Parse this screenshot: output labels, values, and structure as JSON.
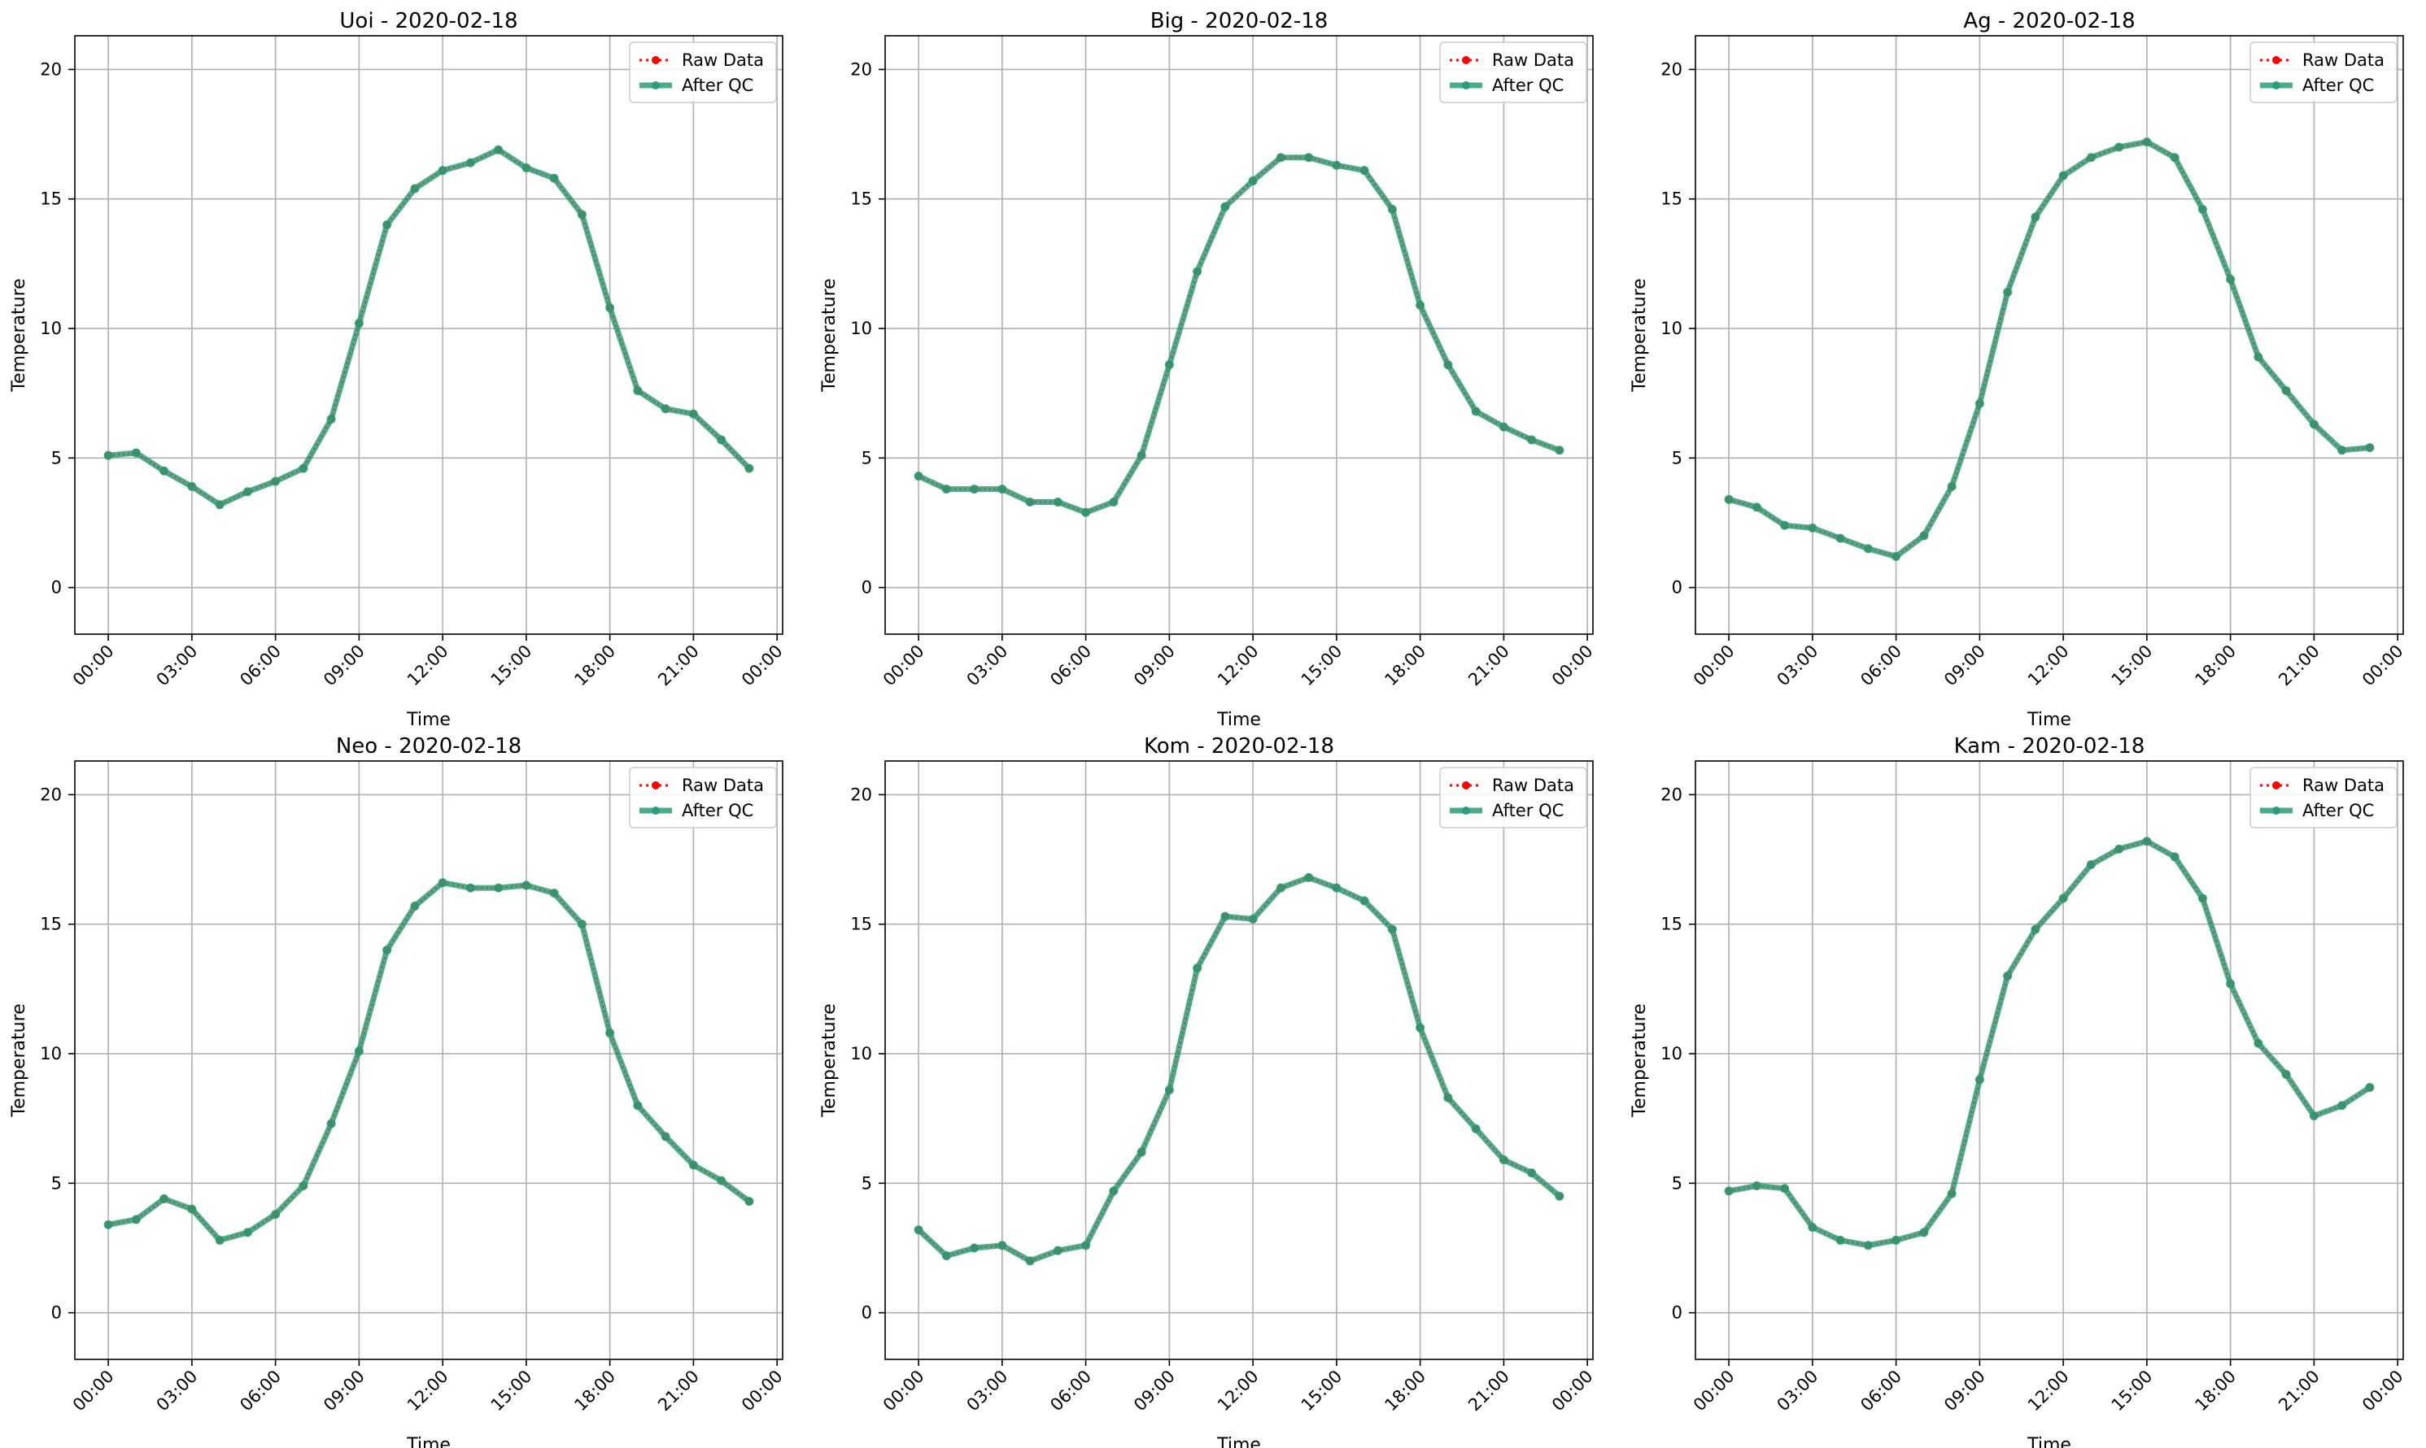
{
  "colors": {
    "raw": "#ff0000",
    "qc": "#2a9d78",
    "grid": "#b0b0b0",
    "axis": "#000000"
  },
  "legend": {
    "raw_label": "Raw Data",
    "qc_label": "After QC",
    "position": "top-right"
  },
  "chart_data": [
    {
      "type": "line",
      "title": "Uoi - 2020-02-18",
      "xlabel": "Time",
      "ylabel": "Temperature",
      "x_ticks": [
        "00:00",
        "03:00",
        "06:00",
        "09:00",
        "12:00",
        "15:00",
        "18:00",
        "21:00",
        "00:00"
      ],
      "y_ticks": [
        "0",
        "5",
        "10",
        "15",
        "20"
      ],
      "xlim": [
        -1.2,
        24.2
      ],
      "ylim": [
        -1.8,
        21.3
      ],
      "grid": true,
      "x": [
        0,
        1,
        2,
        3,
        4,
        5,
        6,
        7,
        8,
        9,
        10,
        11,
        12,
        13,
        14,
        15,
        16,
        17,
        18,
        19,
        20,
        21,
        22,
        23
      ],
      "series": [
        {
          "name": "Raw Data",
          "values": [
            5.1,
            5.2,
            4.5,
            3.9,
            3.2,
            3.7,
            4.1,
            4.6,
            6.5,
            10.2,
            14.0,
            15.4,
            16.1,
            16.4,
            16.9,
            16.2,
            15.8,
            14.4,
            10.8,
            7.6,
            6.9,
            6.7,
            5.7,
            4.6
          ]
        },
        {
          "name": "After QC",
          "values": [
            5.1,
            5.2,
            4.5,
            3.9,
            3.2,
            3.7,
            4.1,
            4.6,
            6.5,
            10.2,
            14.0,
            15.4,
            16.1,
            16.4,
            16.9,
            16.2,
            15.8,
            14.4,
            10.8,
            7.6,
            6.9,
            6.7,
            5.7,
            4.6
          ]
        }
      ]
    },
    {
      "type": "line",
      "title": "Big - 2020-02-18",
      "xlabel": "Time",
      "ylabel": "Temperature",
      "x_ticks": [
        "00:00",
        "03:00",
        "06:00",
        "09:00",
        "12:00",
        "15:00",
        "18:00",
        "21:00",
        "00:00"
      ],
      "y_ticks": [
        "0",
        "5",
        "10",
        "15",
        "20"
      ],
      "xlim": [
        -1.2,
        24.2
      ],
      "ylim": [
        -1.8,
        21.3
      ],
      "grid": true,
      "x": [
        0,
        1,
        2,
        3,
        4,
        5,
        6,
        7,
        8,
        9,
        10,
        11,
        12,
        13,
        14,
        15,
        16,
        17,
        18,
        19,
        20,
        21,
        22,
        23
      ],
      "series": [
        {
          "name": "Raw Data",
          "values": [
            4.3,
            3.8,
            3.8,
            3.8,
            3.3,
            3.3,
            2.9,
            3.3,
            5.1,
            8.6,
            12.2,
            14.7,
            15.7,
            16.6,
            16.6,
            16.3,
            16.1,
            14.6,
            10.9,
            8.6,
            6.8,
            6.2,
            5.7,
            5.3
          ]
        },
        {
          "name": "After QC",
          "values": [
            4.3,
            3.8,
            3.8,
            3.8,
            3.3,
            3.3,
            2.9,
            3.3,
            5.1,
            8.6,
            12.2,
            14.7,
            15.7,
            16.6,
            16.6,
            16.3,
            16.1,
            14.6,
            10.9,
            8.6,
            6.8,
            6.2,
            5.7,
            5.3
          ]
        }
      ]
    },
    {
      "type": "line",
      "title": "Ag - 2020-02-18",
      "xlabel": "Time",
      "ylabel": "Temperature",
      "x_ticks": [
        "00:00",
        "03:00",
        "06:00",
        "09:00",
        "12:00",
        "15:00",
        "18:00",
        "21:00",
        "00:00"
      ],
      "y_ticks": [
        "0",
        "5",
        "10",
        "15",
        "20"
      ],
      "xlim": [
        -1.2,
        24.2
      ],
      "ylim": [
        -1.8,
        21.3
      ],
      "grid": true,
      "x": [
        0,
        1,
        2,
        3,
        4,
        5,
        6,
        7,
        8,
        9,
        10,
        11,
        12,
        13,
        14,
        15,
        16,
        17,
        18,
        19,
        20,
        21,
        22,
        23
      ],
      "series": [
        {
          "name": "Raw Data",
          "values": [
            3.4,
            3.1,
            2.4,
            2.3,
            1.9,
            1.5,
            1.2,
            2.0,
            3.9,
            7.1,
            11.4,
            14.3,
            15.9,
            16.6,
            17.0,
            17.2,
            16.6,
            14.6,
            11.9,
            8.9,
            7.6,
            6.3,
            5.3,
            5.4
          ]
        },
        {
          "name": "After QC",
          "values": [
            3.4,
            3.1,
            2.4,
            2.3,
            1.9,
            1.5,
            1.2,
            2.0,
            3.9,
            7.1,
            11.4,
            14.3,
            15.9,
            16.6,
            17.0,
            17.2,
            16.6,
            14.6,
            11.9,
            8.9,
            7.6,
            6.3,
            5.3,
            5.4
          ]
        }
      ]
    },
    {
      "type": "line",
      "title": "Neo - 2020-02-18",
      "xlabel": "Time",
      "ylabel": "Temperature",
      "x_ticks": [
        "00:00",
        "03:00",
        "06:00",
        "09:00",
        "12:00",
        "15:00",
        "18:00",
        "21:00",
        "00:00"
      ],
      "y_ticks": [
        "0",
        "5",
        "10",
        "15",
        "20"
      ],
      "xlim": [
        -1.2,
        24.2
      ],
      "ylim": [
        -1.8,
        21.3
      ],
      "grid": true,
      "x": [
        0,
        1,
        2,
        3,
        4,
        5,
        6,
        7,
        8,
        9,
        10,
        11,
        12,
        13,
        14,
        15,
        16,
        17,
        18,
        19,
        20,
        21,
        22,
        23
      ],
      "series": [
        {
          "name": "Raw Data",
          "values": [
            3.4,
            3.6,
            4.4,
            4.0,
            2.8,
            3.1,
            3.8,
            4.9,
            7.3,
            10.1,
            14.0,
            15.7,
            16.6,
            16.4,
            16.4,
            16.5,
            16.2,
            15.0,
            10.8,
            8.0,
            6.8,
            5.7,
            5.1,
            4.3
          ]
        },
        {
          "name": "After QC",
          "values": [
            3.4,
            3.6,
            4.4,
            4.0,
            2.8,
            3.1,
            3.8,
            4.9,
            7.3,
            10.1,
            14.0,
            15.7,
            16.6,
            16.4,
            16.4,
            16.5,
            16.2,
            15.0,
            10.8,
            8.0,
            6.8,
            5.7,
            5.1,
            4.3
          ]
        }
      ]
    },
    {
      "type": "line",
      "title": "Kom - 2020-02-18",
      "xlabel": "Time",
      "ylabel": "Temperature",
      "x_ticks": [
        "00:00",
        "03:00",
        "06:00",
        "09:00",
        "12:00",
        "15:00",
        "18:00",
        "21:00",
        "00:00"
      ],
      "y_ticks": [
        "0",
        "5",
        "10",
        "15",
        "20"
      ],
      "xlim": [
        -1.2,
        24.2
      ],
      "ylim": [
        -1.8,
        21.3
      ],
      "grid": true,
      "x": [
        0,
        1,
        2,
        3,
        4,
        5,
        6,
        7,
        8,
        9,
        10,
        11,
        12,
        13,
        14,
        15,
        16,
        17,
        18,
        19,
        20,
        21,
        22,
        23
      ],
      "series": [
        {
          "name": "Raw Data",
          "values": [
            3.2,
            2.2,
            2.5,
            2.6,
            2.0,
            2.4,
            2.6,
            4.7,
            6.2,
            8.6,
            13.3,
            15.3,
            15.2,
            16.4,
            16.8,
            16.4,
            15.9,
            14.8,
            11.0,
            8.3,
            7.1,
            5.9,
            5.4,
            4.5
          ]
        },
        {
          "name": "After QC",
          "values": [
            3.2,
            2.2,
            2.5,
            2.6,
            2.0,
            2.4,
            2.6,
            4.7,
            6.2,
            8.6,
            13.3,
            15.3,
            15.2,
            16.4,
            16.8,
            16.4,
            15.9,
            14.8,
            11.0,
            8.3,
            7.1,
            5.9,
            5.4,
            4.5
          ]
        }
      ]
    },
    {
      "type": "line",
      "title": "Kam - 2020-02-18",
      "xlabel": "Time",
      "ylabel": "Temperature",
      "x_ticks": [
        "00:00",
        "03:00",
        "06:00",
        "09:00",
        "12:00",
        "15:00",
        "18:00",
        "21:00",
        "00:00"
      ],
      "y_ticks": [
        "0",
        "5",
        "10",
        "15",
        "20"
      ],
      "xlim": [
        -1.2,
        24.2
      ],
      "ylim": [
        -1.8,
        21.3
      ],
      "grid": true,
      "x": [
        0,
        1,
        2,
        3,
        4,
        5,
        6,
        7,
        8,
        9,
        10,
        11,
        12,
        13,
        14,
        15,
        16,
        17,
        18,
        19,
        20,
        21,
        22,
        23
      ],
      "series": [
        {
          "name": "Raw Data",
          "values": [
            4.7,
            4.9,
            4.8,
            3.3,
            2.8,
            2.6,
            2.8,
            3.1,
            4.6,
            9.0,
            13.0,
            14.8,
            16.0,
            17.3,
            17.9,
            18.2,
            17.6,
            16.0,
            12.7,
            10.4,
            9.2,
            7.6,
            8.0,
            8.7
          ]
        },
        {
          "name": "After QC",
          "values": [
            4.7,
            4.9,
            4.8,
            3.3,
            2.8,
            2.6,
            2.8,
            3.1,
            4.6,
            9.0,
            13.0,
            14.8,
            16.0,
            17.3,
            17.9,
            18.2,
            17.6,
            16.0,
            12.7,
            10.4,
            9.2,
            7.6,
            8.0,
            8.7
          ]
        }
      ]
    }
  ]
}
